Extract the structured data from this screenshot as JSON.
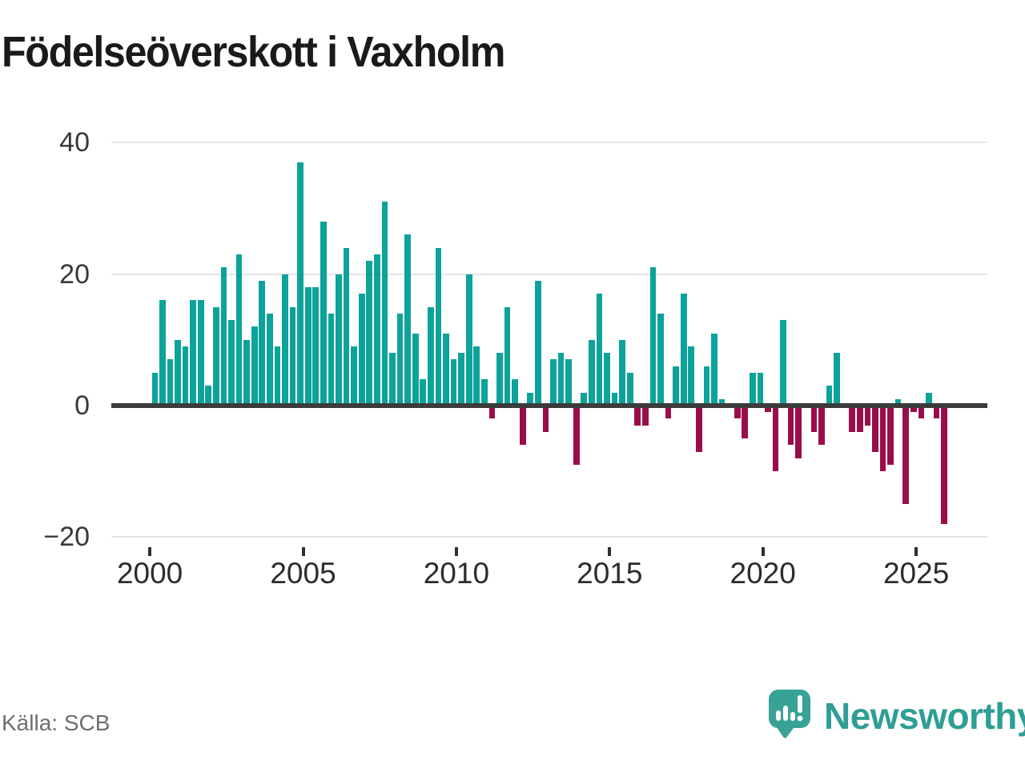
{
  "title": "Födelseöverskott i Vaxholm",
  "source": "Källa: SCB",
  "branding": {
    "name": "Newsworthy",
    "icon": "newsworthy-logo-icon",
    "brand_color": "#2f9e94",
    "icon_color": "#38a296"
  },
  "chart_data": {
    "type": "bar",
    "title": "Födelseöverskott i Vaxholm",
    "frequency": "quarterly",
    "x_range": [
      "2000 Q1",
      "2025 Q4"
    ],
    "start_year": 2000,
    "series": [
      {
        "name": "Födelseöverskott",
        "values": [
          5,
          16,
          7,
          10,
          9,
          16,
          16,
          3,
          15,
          21,
          13,
          23,
          10,
          12,
          19,
          14,
          9,
          20,
          15,
          37,
          18,
          18,
          28,
          14,
          20,
          24,
          9,
          17,
          22,
          23,
          31,
          8,
          14,
          26,
          11,
          4,
          15,
          24,
          11,
          7,
          8,
          20,
          9,
          4,
          -2,
          8,
          15,
          4,
          -6,
          2,
          19,
          -4,
          7,
          8,
          7,
          -9,
          2,
          10,
          17,
          8,
          2,
          10,
          5,
          -3,
          -3,
          21,
          14,
          -2,
          6,
          17,
          9,
          -7,
          6,
          11,
          1,
          0,
          -2,
          -5,
          5,
          5,
          -1,
          -10,
          13,
          -6,
          -8,
          0,
          -4,
          -6,
          3,
          8,
          0,
          -4,
          -4,
          -3,
          -7,
          -10,
          -9,
          1,
          -15,
          -1,
          -2,
          2,
          -2,
          -18
        ]
      }
    ],
    "y_ticks": [
      {
        "label": "40",
        "value": 40
      },
      {
        "label": "20",
        "value": 20
      },
      {
        "label": "0",
        "value": 0
      },
      {
        "label": "−20",
        "value": -20
      }
    ],
    "x_ticks": [
      {
        "label": "2000",
        "year": 2000
      },
      {
        "label": "2005",
        "year": 2005
      },
      {
        "label": "2010",
        "year": 2010
      },
      {
        "label": "2015",
        "year": 2015
      },
      {
        "label": "2020",
        "year": 2020
      },
      {
        "label": "2025",
        "year": 2025
      }
    ],
    "ylim": [
      -20,
      40
    ],
    "grid": true,
    "legend": false,
    "colors": {
      "positive": "#0da39b",
      "negative": "#9a0d4b"
    }
  }
}
